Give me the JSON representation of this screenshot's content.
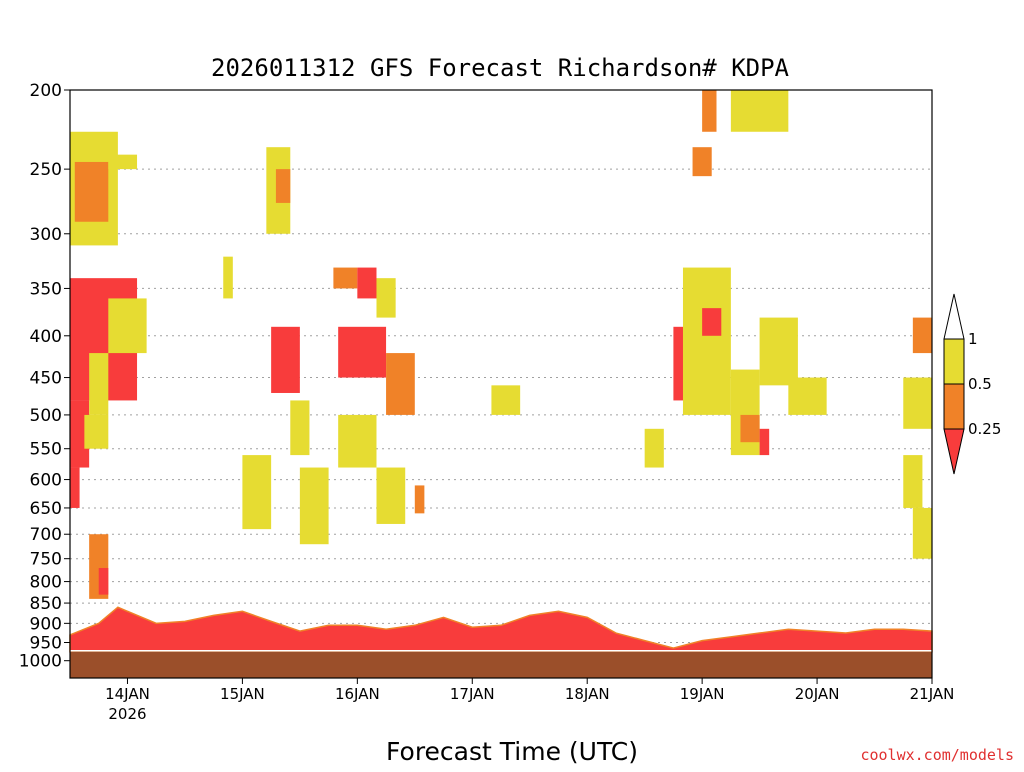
{
  "title": "2026011312 GFS Forecast Richardson# KDPA",
  "watermark": "coolwx.com/models",
  "colors": {
    "low": "#f83c3c",
    "mid": "#f08228",
    "high": "#e6dc32",
    "ground": "#9b4f2a",
    "grid": "#a0a0a0"
  },
  "chart_data": {
    "type": "heatmap",
    "title": "2026011312 GFS Forecast Richardson# KDPA",
    "xlabel": "Forecast Time (UTC)",
    "ylabel": "",
    "x_ticks": [
      {
        "label": "14JAN",
        "sublabel": "2026",
        "hour": 12
      },
      {
        "label": "15JAN",
        "sublabel": "",
        "hour": 36
      },
      {
        "label": "16JAN",
        "sublabel": "",
        "hour": 60
      },
      {
        "label": "17JAN",
        "sublabel": "",
        "hour": 84
      },
      {
        "label": "18JAN",
        "sublabel": "",
        "hour": 108
      },
      {
        "label": "19JAN",
        "sublabel": "",
        "hour": 132
      },
      {
        "label": "20JAN",
        "sublabel": "",
        "hour": 156
      },
      {
        "label": "21JAN",
        "sublabel": "",
        "hour": 180
      }
    ],
    "xlim": [
      0,
      180
    ],
    "y_axis": "pressure (hPa), log scale, inverted",
    "y_ticks": [
      200,
      250,
      300,
      350,
      400,
      450,
      500,
      550,
      600,
      650,
      700,
      750,
      800,
      850,
      900,
      950,
      1000
    ],
    "ylim": [
      1050,
      200
    ],
    "grid": true,
    "legend": {
      "placement": "right",
      "labels": [
        "1",
        "0.5",
        "0.25"
      ],
      "bins": [
        {
          "range": "0.5-1",
          "color": "#e6dc32"
        },
        {
          "range": "0.25-0.5",
          "color": "#f08228"
        },
        {
          "range": "<0.25",
          "color": "#f83c3c"
        }
      ]
    },
    "cells": [
      {
        "x": [
          0,
          10
        ],
        "p": [
          225,
          310
        ],
        "v": "high"
      },
      {
        "x": [
          1,
          8
        ],
        "p": [
          245,
          290
        ],
        "v": "mid"
      },
      {
        "x": [
          8,
          14
        ],
        "p": [
          240,
          250
        ],
        "v": "high"
      },
      {
        "x": [
          0,
          14
        ],
        "p": [
          340,
          480
        ],
        "v": "low"
      },
      {
        "x": [
          0,
          3
        ],
        "p": [
          390,
          470
        ],
        "v": "low"
      },
      {
        "x": [
          8,
          16
        ],
        "p": [
          360,
          420
        ],
        "v": "high"
      },
      {
        "x": [
          0,
          4
        ],
        "p": [
          480,
          580
        ],
        "v": "low"
      },
      {
        "x": [
          4,
          8
        ],
        "p": [
          420,
          500
        ],
        "v": "high"
      },
      {
        "x": [
          3,
          8
        ],
        "p": [
          500,
          550
        ],
        "v": "high"
      },
      {
        "x": [
          0,
          2
        ],
        "p": [
          580,
          650
        ],
        "v": "low"
      },
      {
        "x": [
          4,
          8
        ],
        "p": [
          700,
          840
        ],
        "v": "mid"
      },
      {
        "x": [
          6,
          8
        ],
        "p": [
          770,
          830
        ],
        "v": "low"
      },
      {
        "x": [
          41,
          46
        ],
        "p": [
          235,
          300
        ],
        "v": "high"
      },
      {
        "x": [
          43,
          46
        ],
        "p": [
          250,
          275
        ],
        "v": "mid"
      },
      {
        "x": [
          32,
          34
        ],
        "p": [
          320,
          360
        ],
        "v": "high"
      },
      {
        "x": [
          42,
          48
        ],
        "p": [
          390,
          470
        ],
        "v": "low"
      },
      {
        "x": [
          46,
          50
        ],
        "p": [
          480,
          560
        ],
        "v": "high"
      },
      {
        "x": [
          36,
          42
        ],
        "p": [
          560,
          690
        ],
        "v": "high"
      },
      {
        "x": [
          48,
          54
        ],
        "p": [
          580,
          720
        ],
        "v": "high"
      },
      {
        "x": [
          55,
          60
        ],
        "p": [
          330,
          350
        ],
        "v": "mid"
      },
      {
        "x": [
          60,
          64
        ],
        "p": [
          330,
          360
        ],
        "v": "low"
      },
      {
        "x": [
          64,
          68
        ],
        "p": [
          340,
          380
        ],
        "v": "high"
      },
      {
        "x": [
          56,
          66
        ],
        "p": [
          390,
          450
        ],
        "v": "low"
      },
      {
        "x": [
          66,
          72
        ],
        "p": [
          420,
          500
        ],
        "v": "mid"
      },
      {
        "x": [
          56,
          64
        ],
        "p": [
          500,
          580
        ],
        "v": "high"
      },
      {
        "x": [
          64,
          70
        ],
        "p": [
          580,
          680
        ],
        "v": "high"
      },
      {
        "x": [
          72,
          74
        ],
        "p": [
          610,
          660
        ],
        "v": "mid"
      },
      {
        "x": [
          88,
          94
        ],
        "p": [
          460,
          500
        ],
        "v": "high"
      },
      {
        "x": [
          126,
          130
        ],
        "p": [
          390,
          480
        ],
        "v": "low"
      },
      {
        "x": [
          128,
          138
        ],
        "p": [
          330,
          500
        ],
        "v": "high"
      },
      {
        "x": [
          132,
          136
        ],
        "p": [
          370,
          400
        ],
        "v": "low"
      },
      {
        "x": [
          138,
          144
        ],
        "p": [
          440,
          560
        ],
        "v": "high"
      },
      {
        "x": [
          144,
          152
        ],
        "p": [
          380,
          460
        ],
        "v": "high"
      },
      {
        "x": [
          150,
          158
        ],
        "p": [
          450,
          500
        ],
        "v": "high"
      },
      {
        "x": [
          140,
          144
        ],
        "p": [
          500,
          540
        ],
        "v": "mid"
      },
      {
        "x": [
          144,
          146
        ],
        "p": [
          520,
          560
        ],
        "v": "low"
      },
      {
        "x": [
          120,
          124
        ],
        "p": [
          520,
          580
        ],
        "v": "high"
      },
      {
        "x": [
          130,
          134
        ],
        "p": [
          235,
          255
        ],
        "v": "mid"
      },
      {
        "x": [
          132,
          135
        ],
        "p": [
          200,
          225
        ],
        "v": "mid"
      },
      {
        "x": [
          138,
          150
        ],
        "p": [
          200,
          225
        ],
        "v": "high"
      },
      {
        "x": [
          176,
          180
        ],
        "p": [
          380,
          420
        ],
        "v": "mid"
      },
      {
        "x": [
          174,
          180
        ],
        "p": [
          450,
          520
        ],
        "v": "high"
      },
      {
        "x": [
          174,
          178
        ],
        "p": [
          560,
          650
        ],
        "v": "high"
      },
      {
        "x": [
          176,
          180
        ],
        "p": [
          650,
          750
        ],
        "v": "high"
      }
    ],
    "boundary_layer_top_hPa": [
      [
        0,
        930
      ],
      [
        6,
        900
      ],
      [
        10,
        860
      ],
      [
        14,
        880
      ],
      [
        18,
        900
      ],
      [
        24,
        895
      ],
      [
        30,
        880
      ],
      [
        36,
        870
      ],
      [
        42,
        895
      ],
      [
        48,
        920
      ],
      [
        54,
        905
      ],
      [
        60,
        905
      ],
      [
        66,
        915
      ],
      [
        72,
        905
      ],
      [
        78,
        885
      ],
      [
        84,
        910
      ],
      [
        90,
        905
      ],
      [
        96,
        880
      ],
      [
        102,
        870
      ],
      [
        108,
        885
      ],
      [
        114,
        925
      ],
      [
        120,
        945
      ],
      [
        126,
        965
      ],
      [
        132,
        945
      ],
      [
        138,
        935
      ],
      [
        144,
        925
      ],
      [
        150,
        915
      ],
      [
        156,
        920
      ],
      [
        162,
        925
      ],
      [
        168,
        915
      ],
      [
        174,
        915
      ],
      [
        180,
        920
      ]
    ],
    "surface_hPa": 975
  }
}
